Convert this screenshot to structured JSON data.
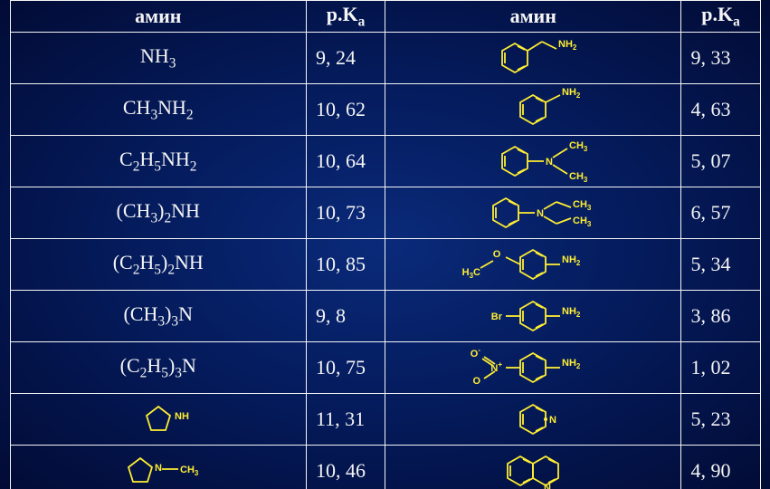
{
  "headers": {
    "amine": "амин",
    "pka": "p.K",
    "pka_sub": "a"
  },
  "left": [
    {
      "formula": "NH<sub>3</sub>",
      "pka": "9, 24"
    },
    {
      "formula": "CH<sub>3</sub>NH<sub>2</sub>",
      "pka": "10, 62"
    },
    {
      "formula": "C<sub>2</sub>H<sub>5</sub>NH<sub>2</sub>",
      "pka": "10, 64"
    },
    {
      "formula": "(CH<sub>3</sub>)<sub>2</sub>NH",
      "pka": "10, 73"
    },
    {
      "formula": "(C<sub>2</sub>H<sub>5</sub>)<sub>2</sub>NH",
      "pka": "10, 85"
    },
    {
      "formula": "(CH<sub>3</sub>)<sub>3</sub>N",
      "pka": "9, 8"
    },
    {
      "formula": "(C<sub>2</sub>H<sub>5</sub>)<sub>3</sub>N",
      "pka": "10, 75"
    },
    {
      "svg": "pyrrolidine",
      "pka": "11, 31"
    },
    {
      "svg": "n_methylpyrrolidine",
      "pka": "10, 46"
    }
  ],
  "right": [
    {
      "svg": "benzylamine",
      "pka": "9, 33"
    },
    {
      "svg": "aniline",
      "pka": "4, 63"
    },
    {
      "svg": "dimethylaniline",
      "pka": "5, 07"
    },
    {
      "svg": "diethylaniline",
      "pka": "6, 57"
    },
    {
      "svg": "methoxyaniline",
      "pka": "5, 34"
    },
    {
      "svg": "bromoaniline",
      "pka": "3, 86"
    },
    {
      "svg": "nitroaniline",
      "pka": "1, 02"
    },
    {
      "svg": "pyridine",
      "pka": "5, 23"
    },
    {
      "svg": "quinoline",
      "pka": "4, 90"
    }
  ],
  "svg_labels": {
    "NH2": "NH",
    "NH2_2": "2",
    "CH3": "CH",
    "CH3_3": "3",
    "NH": "NH",
    "N": "N",
    "O": "O",
    "Br": "Br",
    "H3C": "H",
    "H3C_3": "3",
    "H3C_C": "C"
  },
  "colors": {
    "structure": "#ffee33",
    "text": "#f5f5f5",
    "border": "#f5f5f5"
  }
}
